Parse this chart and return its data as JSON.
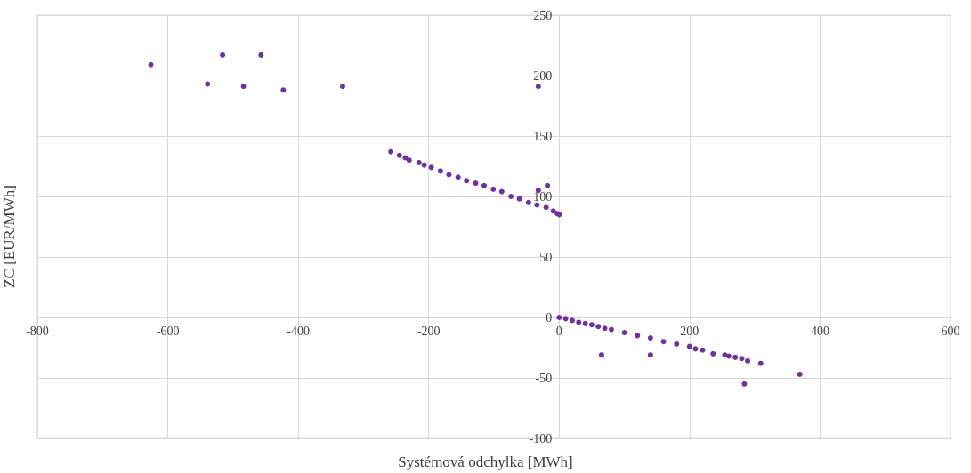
{
  "chart_data": {
    "type": "scatter",
    "xlabel": "Systémová odchylka [MWh]",
    "ylabel": "ZC [EUR/MWh]",
    "xlim": [
      -800,
      600
    ],
    "xticks": [
      -800,
      -600,
      -400,
      -200,
      0,
      200,
      400,
      600
    ],
    "ylim": [
      -100,
      250
    ],
    "yticks": [
      -100,
      -50,
      0,
      50,
      100,
      150,
      200,
      250
    ],
    "grid": true,
    "marker": "circle",
    "series": [
      {
        "color": "#7030a0",
        "x": [
          -626,
          -539,
          -516,
          -484,
          -457,
          -423,
          -332,
          -32,
          -18,
          -32,
          -258,
          -245,
          -236,
          -230,
          -215,
          -207,
          -196,
          -182,
          -169,
          -155,
          -142,
          -128,
          -115,
          -101,
          -88,
          -74,
          -61,
          -47,
          -34,
          -20,
          -9,
          -3,
          0,
          0,
          10,
          20,
          30,
          40,
          50,
          60,
          70,
          80,
          100,
          120,
          140,
          160,
          180,
          200,
          209,
          220,
          236,
          254,
          260,
          270,
          280,
          289,
          65,
          140,
          284,
          309,
          369
        ],
        "values": [
          209,
          193,
          217,
          191,
          217,
          188,
          191,
          191,
          109,
          105,
          137,
          134,
          132,
          130,
          128,
          126,
          124,
          121,
          118,
          116,
          113,
          111,
          109,
          106,
          104,
          100,
          98,
          95,
          93,
          91,
          88,
          86,
          85,
          0,
          -1,
          -2.5,
          -4,
          -5,
          -6,
          -7.5,
          -9,
          -10,
          -12.5,
          -15,
          -17,
          -20,
          -22,
          -24,
          -26,
          -27,
          -30,
          -31,
          -32,
          -33,
          -34,
          -36,
          -31,
          -31,
          -55,
          -38,
          -47
        ]
      }
    ]
  }
}
